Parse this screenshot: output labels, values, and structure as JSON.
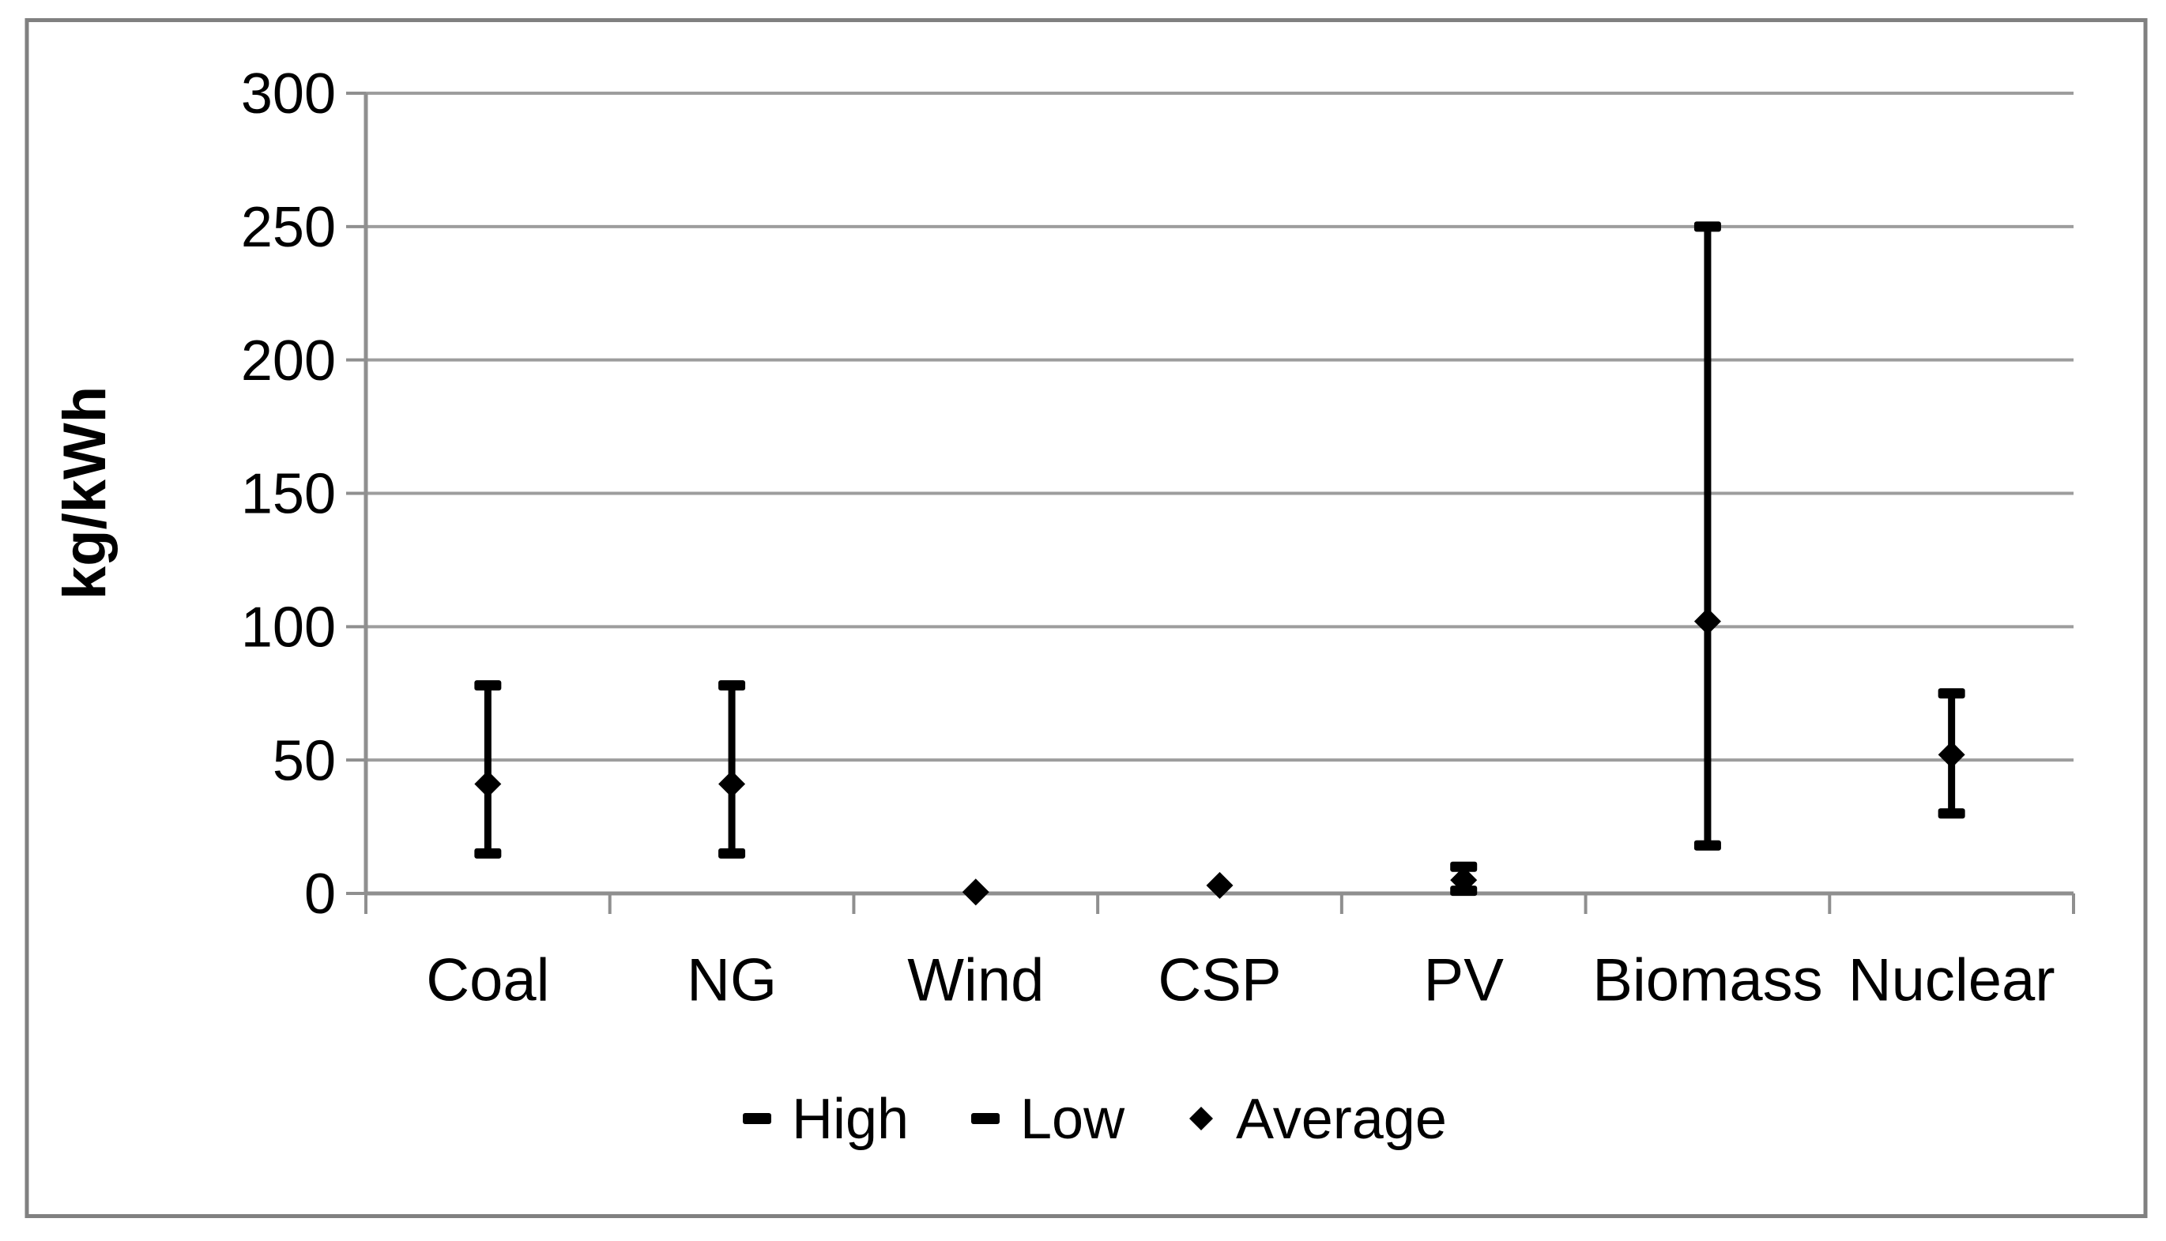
{
  "figure": {
    "background": "#FFFFFF",
    "border_color": "#808080"
  },
  "chart_data": {
    "type": "scatter",
    "subtype": "high-low-average-errorbar",
    "title": "",
    "ylabel": "kg/kWh",
    "xlabel": "",
    "categories": [
      "Coal",
      "NG",
      "Wind",
      "CSP",
      "PV",
      "Biomass",
      "Nuclear"
    ],
    "series": [
      {
        "name": "High",
        "marker": "dash",
        "values": [
          78,
          78,
          null,
          null,
          10,
          250,
          75
        ]
      },
      {
        "name": "Low",
        "marker": "dash",
        "values": [
          15,
          15,
          null,
          null,
          1,
          18,
          30
        ]
      },
      {
        "name": "Average",
        "marker": "diamond",
        "values": [
          41,
          41,
          0.5,
          3,
          5,
          102,
          52
        ]
      }
    ],
    "ylim": [
      0,
      300
    ],
    "y_ticks": [
      0,
      50,
      100,
      150,
      200,
      250,
      300
    ],
    "grid": "horizontal",
    "legend_position": "bottom",
    "colors": {
      "marker": "#000000",
      "gridline": "#9D9D9D",
      "axis": "#8F8F8F",
      "text": "#000000"
    }
  },
  "legend": {
    "items": [
      {
        "marker": "dash",
        "label": "High"
      },
      {
        "marker": "dash",
        "label": "Low"
      },
      {
        "marker": "diamond",
        "label": "Average"
      }
    ]
  }
}
